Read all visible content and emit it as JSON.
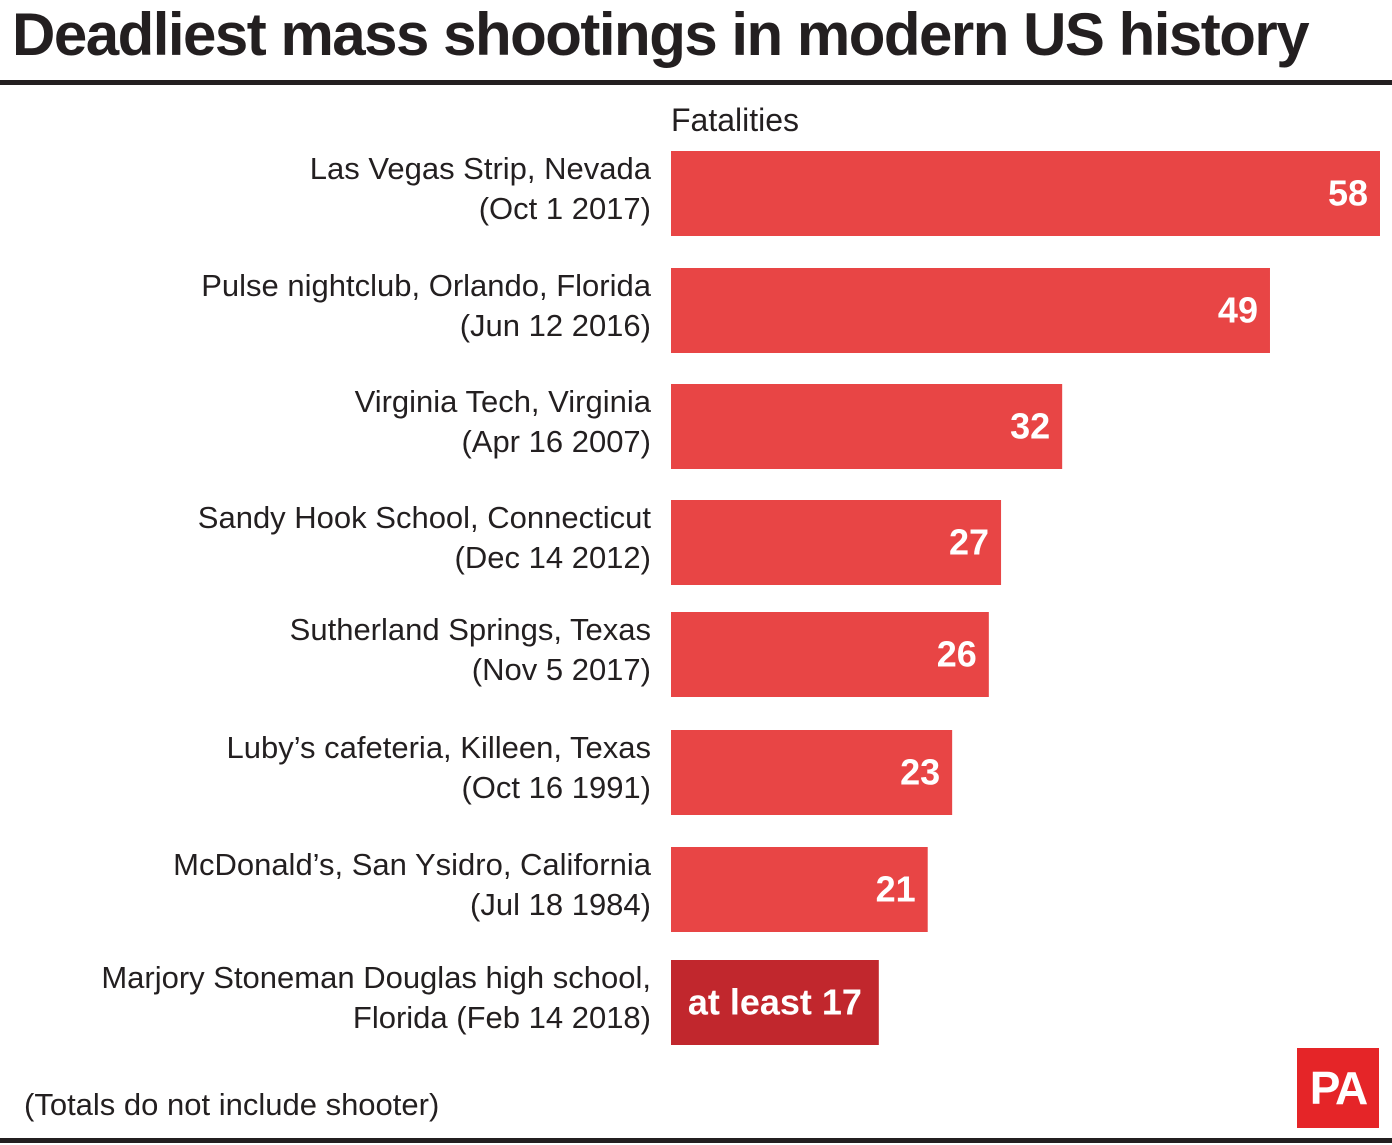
{
  "chart_data": {
    "type": "bar",
    "orientation": "horizontal",
    "title": "Deadliest mass shootings in modern US history",
    "value_axis_label": "Fatalities",
    "categories": [
      [
        "Las Vegas Strip, Nevada",
        "(Oct 1 2017)"
      ],
      [
        "Pulse nightclub, Orlando, Florida",
        "(Jun 12 2016)"
      ],
      [
        "Virginia Tech, Virginia",
        "(Apr 16 2007)"
      ],
      [
        "Sandy Hook School, Connecticut",
        "(Dec 14 2012)"
      ],
      [
        "Sutherland Springs, Texas",
        "(Nov 5 2017)"
      ],
      [
        "Luby’s cafeteria, Killeen, Texas",
        "(Oct 16 1991)"
      ],
      [
        "McDonald’s, San Ysidro, California",
        "(Jul 18 1984)"
      ],
      [
        "Marjory Stoneman Douglas high school,",
        "Florida (Feb 14 2018)"
      ]
    ],
    "values": [
      58,
      49,
      32,
      27,
      26,
      23,
      21,
      17
    ],
    "data_labels": [
      "58",
      "49",
      "32",
      "27",
      "26",
      "23",
      "21",
      "at least 17"
    ],
    "bar_colors": [
      "#e84545",
      "#e84545",
      "#e84545",
      "#e84545",
      "#e84545",
      "#e84545",
      "#e84545",
      "#c1272d"
    ],
    "xlim": [
      0,
      58
    ],
    "grid": false,
    "legend": "none"
  },
  "footnote": "(Totals do not include shooter)",
  "logo": {
    "text": "PA",
    "color": "#e52528"
  }
}
